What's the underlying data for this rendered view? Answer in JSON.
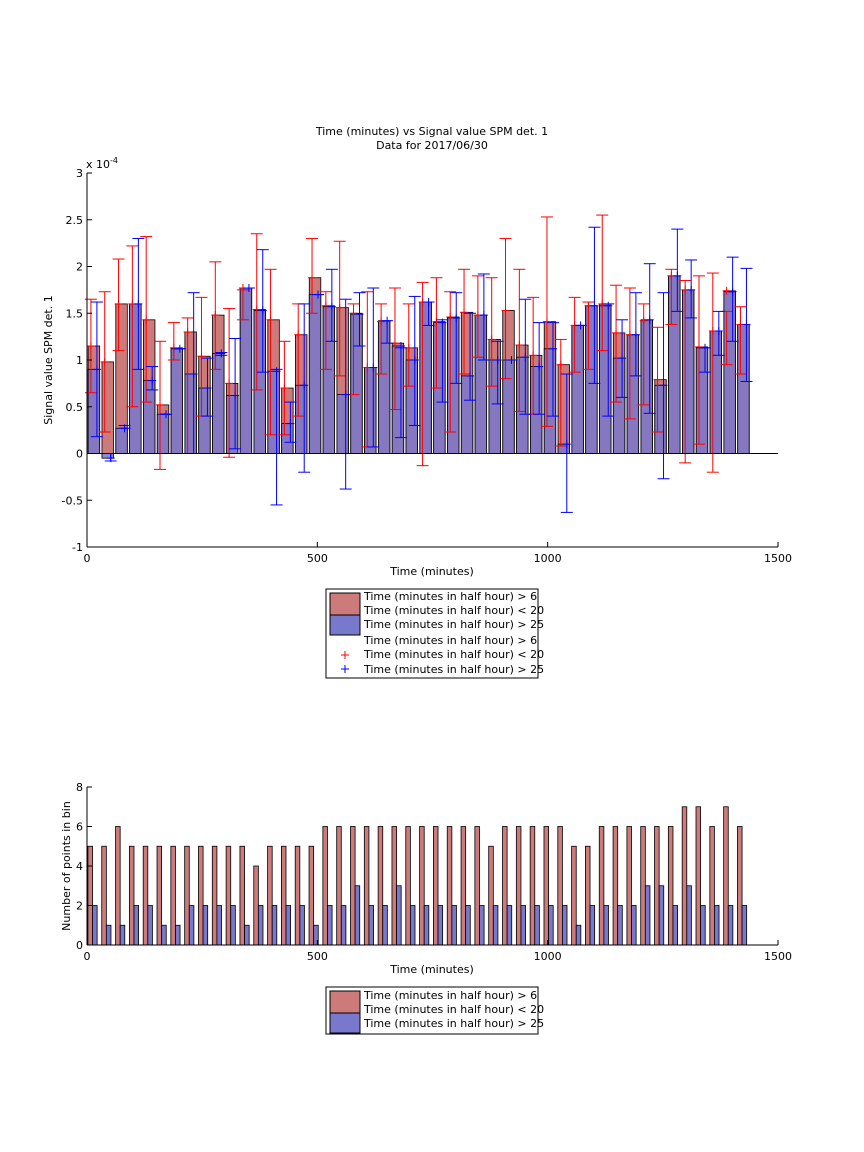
{
  "figure": {
    "title": "Time (minutes) vs Signal value SPM det. 1",
    "subtitle": "Data for 2017/06/30"
  },
  "colors": {
    "red_fill": "#cc7a7a",
    "blue_fill": "#7878cc",
    "red_line": "#ff0000",
    "blue_line": "#0000ff",
    "axis": "#000000"
  },
  "chart_data": [
    {
      "type": "bar",
      "title": "Time (minutes) vs Signal value SPM det. 1",
      "subtitle": "Data for 2017/06/30",
      "xlabel": "Time (minutes)",
      "ylabel": "Signal value SPM det. 1",
      "y_exponent_label": "x 10",
      "y_exponent_power": "-4",
      "xlim": [
        0,
        1500
      ],
      "ylim": [
        -1,
        3
      ],
      "xticks": [
        "0",
        "500",
        "1000",
        "1500"
      ],
      "yticks": [
        "-1",
        "-0.5",
        "0",
        "0.5",
        "1",
        "1.5",
        "2",
        "2.5",
        "3"
      ],
      "bar_width": 25,
      "y_scale": "x 1e-4",
      "legend": [
        "Time (minutes in half hour) > 6",
        "Time (minutes in half hour) < 20",
        "Time (minutes in half hour) > 25",
        "Time (minutes in half hour) > 6",
        "Time (minutes in half hour) < 20",
        "Time (minutes in half hour) > 25"
      ],
      "series": [
        {
          "name": "Time (minutes in half hour) > 6 Time (minutes in half hour) < 20",
          "x": [
            15,
            45,
            75,
            105,
            135,
            165,
            195,
            225,
            255,
            285,
            315,
            345,
            375,
            405,
            435,
            465,
            495,
            525,
            555,
            585,
            615,
            645,
            675,
            705,
            735,
            765,
            795,
            825,
            855,
            885,
            915,
            945,
            975,
            1005,
            1035,
            1065,
            1095,
            1125,
            1155,
            1185,
            1215,
            1245,
            1275,
            1305,
            1335,
            1365,
            1395,
            1425
          ],
          "values": [
            1.15,
            0.98,
            1.6,
            1.6,
            1.43,
            0.52,
            1.13,
            1.3,
            1.04,
            1.48,
            0.75,
            1.77,
            1.54,
            1.43,
            0.7,
            1.27,
            1.88,
            1.58,
            1.56,
            1.5,
            0.92,
            1.41,
            1.18,
            1.13,
            1.62,
            1.41,
            1.46,
            1.51,
            1.48,
            1.22,
            1.53,
            1.16,
            1.05,
            1.41,
            0.95,
            1.37,
            1.58,
            1.6,
            1.29,
            1.27,
            1.42,
            0.79,
            1.9,
            1.75,
            1.14,
            1.31,
            1.74,
            1.38
          ],
          "err_low": [
            0.65,
            0.23,
            1.1,
            0.5,
            0.55,
            -0.17,
            1.0,
            0.0,
            0.4,
            0.9,
            -0.04,
            1.43,
            0.68,
            0.2,
            0.2,
            0.4,
            1.5,
            0.9,
            0.83,
            0.63,
            0.07,
            0.85,
            0.47,
            0.72,
            -0.13,
            0.7,
            0.23,
            0.85,
            1.03,
            0.72,
            0.8,
            0.45,
            0.42,
            0.29,
            0.08,
            0.87,
            0.9,
            1.1,
            0.55,
            0.37,
            0.52,
            0.23,
            1.38,
            -0.1,
            0.1,
            -0.2,
            0.95,
            0.85
          ],
          "err_high": [
            1.65,
            1.73,
            2.08,
            2.22,
            2.32,
            1.2,
            1.4,
            1.45,
            1.67,
            2.05,
            1.55,
            1.75,
            2.35,
            1.97,
            1.2,
            1.6,
            2.3,
            1.73,
            2.27,
            1.6,
            1.73,
            1.6,
            1.77,
            1.6,
            1.83,
            1.88,
            1.73,
            1.97,
            1.9,
            1.88,
            2.3,
            1.97,
            1.67,
            2.53,
            1.22,
            1.67,
            1.62,
            2.55,
            1.8,
            1.77,
            1.6,
            1.35,
            1.97,
            1.85,
            1.9,
            1.93,
            1.52,
            1.57
          ]
        },
        {
          "name": "Time (minutes in half hour) > 25",
          "x": [
            15,
            45,
            75,
            105,
            135,
            165,
            195,
            225,
            255,
            285,
            315,
            345,
            375,
            405,
            435,
            465,
            495,
            525,
            555,
            585,
            615,
            645,
            675,
            705,
            735,
            765,
            795,
            825,
            855,
            885,
            915,
            945,
            975,
            1005,
            1035,
            1065,
            1095,
            1125,
            1155,
            1185,
            1215,
            1245,
            1275,
            1305,
            1335,
            1365,
            1395,
            1425
          ],
          "values": [
            0.9,
            -0.05,
            0.27,
            1.6,
            0.78,
            0.42,
            1.12,
            0.85,
            0.7,
            1.07,
            0.62,
            1.77,
            1.53,
            0.88,
            0.32,
            0.73,
            1.7,
            1.57,
            0.63,
            1.49,
            0.92,
            1.42,
            1.15,
            1.0,
            1.62,
            1.4,
            1.45,
            0.83,
            1.48,
            1.0,
            1.0,
            1.03,
            0.93,
            1.12,
            0.1,
            1.37,
            1.58,
            1.58,
            1.02,
            1.27,
            1.43,
            0.73,
            1.9,
            1.75,
            1.13,
            1.31,
            1.73,
            1.38
          ],
          "err_low": [
            0.18,
            -0.08,
            0.27,
            0.9,
            0.68,
            0.42,
            1.12,
            0.0,
            0.4,
            1.05,
            0.05,
            1.77,
            0.87,
            -0.55,
            0.12,
            -0.2,
            1.7,
            1.2,
            -0.38,
            1.15,
            0.07,
            1.18,
            0.17,
            0.3,
            1.37,
            0.55,
            0.75,
            0.57,
            1.0,
            0.53,
            1.0,
            0.42,
            0.42,
            0.4,
            -0.63,
            1.37,
            0.75,
            0.4,
            0.6,
            0.83,
            0.43,
            -0.27,
            1.52,
            1.45,
            0.87,
            1.05,
            1.2,
            0.77
          ],
          "err_high": [
            1.62,
            0.0,
            0.3,
            2.3,
            0.93,
            0.42,
            1.12,
            1.72,
            1.02,
            1.08,
            1.23,
            1.77,
            2.18,
            0.9,
            0.55,
            1.6,
            1.7,
            1.97,
            1.65,
            1.72,
            1.77,
            1.42,
            1.13,
            1.68,
            1.62,
            1.43,
            1.72,
            1.5,
            1.92,
            1.2,
            1.0,
            1.65,
            1.4,
            1.4,
            0.85,
            1.37,
            2.42,
            1.6,
            1.43,
            1.72,
            2.03,
            1.72,
            2.4,
            2.07,
            1.13,
            1.52,
            2.1,
            1.98
          ]
        }
      ]
    },
    {
      "type": "bar",
      "xlabel": "Time (minutes)",
      "ylabel": "Number of points in bin",
      "xlim": [
        0,
        1500
      ],
      "ylim": [
        0,
        8
      ],
      "xticks": [
        "0",
        "500",
        "1000",
        "1500"
      ],
      "yticks": [
        "0",
        "2",
        "4",
        "6",
        "8"
      ],
      "bar_width": 10,
      "legend": [
        "Time (minutes in half hour) > 6",
        "Time (minutes in half hour) < 20",
        "Time (minutes in half hour) > 25"
      ],
      "series": [
        {
          "name": "Time (minutes in half hour) > 6 Time (minutes in half hour) < 20",
          "x": [
            7,
            37,
            67,
            97,
            127,
            157,
            187,
            217,
            247,
            277,
            307,
            337,
            367,
            397,
            427,
            457,
            487,
            517,
            547,
            577,
            607,
            637,
            667,
            697,
            727,
            757,
            787,
            817,
            847,
            877,
            907,
            937,
            967,
            997,
            1027,
            1057,
            1087,
            1117,
            1147,
            1177,
            1207,
            1237,
            1267,
            1297,
            1327,
            1357,
            1387,
            1417
          ],
          "values": [
            5,
            5,
            6,
            5,
            5,
            5,
            5,
            5,
            5,
            5,
            5,
            5,
            4,
            5,
            5,
            5,
            5,
            6,
            6,
            6,
            6,
            6,
            6,
            6,
            6,
            6,
            6,
            6,
            6,
            5,
            6,
            6,
            6,
            6,
            6,
            5,
            5,
            6,
            6,
            6,
            6,
            6,
            6,
            7,
            7,
            6,
            7,
            6
          ]
        },
        {
          "name": "Time (minutes in half hour) > 25",
          "x": [
            17,
            47,
            77,
            107,
            137,
            167,
            197,
            227,
            257,
            287,
            317,
            347,
            377,
            407,
            437,
            467,
            497,
            527,
            557,
            587,
            617,
            647,
            677,
            707,
            737,
            767,
            797,
            827,
            857,
            887,
            917,
            947,
            977,
            1007,
            1037,
            1067,
            1097,
            1127,
            1157,
            1187,
            1217,
            1247,
            1277,
            1307,
            1337,
            1367,
            1397,
            1427
          ],
          "values": [
            2,
            1,
            1,
            2,
            2,
            1,
            1,
            2,
            2,
            2,
            2,
            1,
            2,
            2,
            2,
            2,
            1,
            2,
            2,
            3,
            2,
            2,
            3,
            2,
            2,
            2,
            2,
            2,
            2,
            2,
            2,
            2,
            2,
            2,
            2,
            1,
            2,
            2,
            2,
            2,
            3,
            3,
            2,
            3,
            2,
            2,
            2,
            2
          ]
        }
      ]
    }
  ]
}
